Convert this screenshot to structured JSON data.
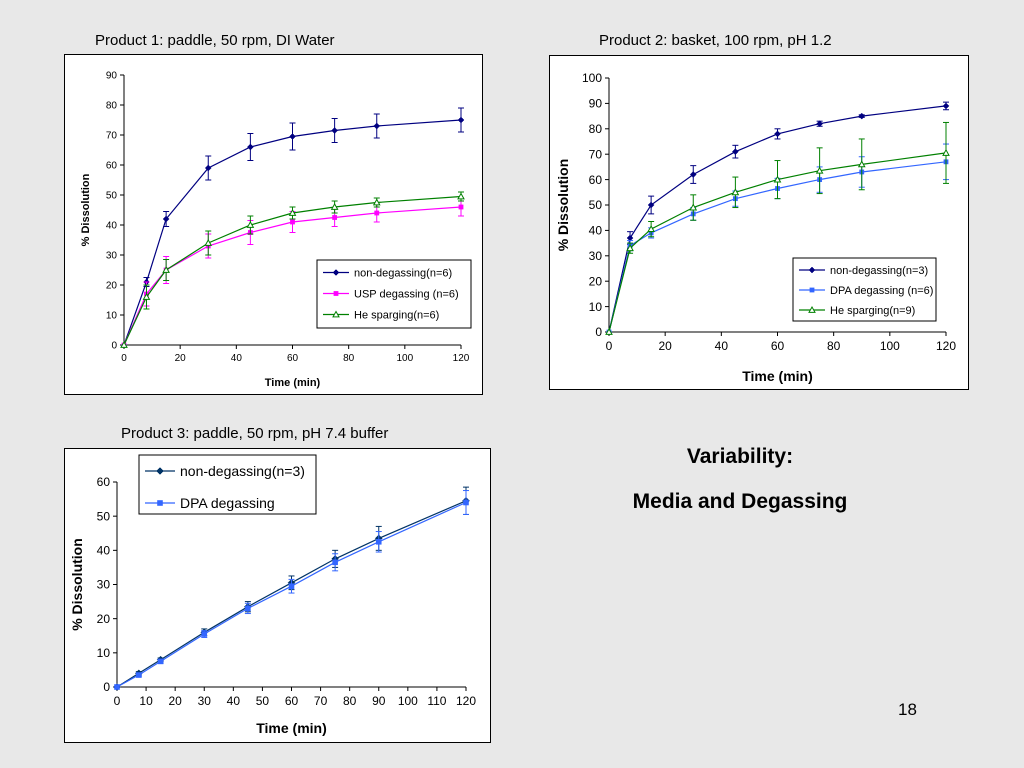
{
  "slide": {
    "heading_line1": "Variability:",
    "heading_line2": "Media and Degassing",
    "page_number": "18"
  },
  "colors": {
    "navy": "#000080",
    "magenta": "#ff00ff",
    "green": "#008000",
    "blue": "#3366ff",
    "darknavy": "#003366"
  },
  "chart_data": [
    {
      "type": "line",
      "title": "Product 1: paddle, 50 rpm, DI Water",
      "xlabel": "Time (min)",
      "ylabel": "% Dissolution",
      "xlim": [
        0,
        120
      ],
      "ylim": [
        0,
        90
      ],
      "xticks": [
        0,
        20,
        40,
        60,
        80,
        100,
        120
      ],
      "yticks": [
        0,
        10,
        20,
        30,
        40,
        50,
        60,
        70,
        80,
        90
      ],
      "legend_position": "bottom-right",
      "series": [
        {
          "name": "non-degassing(n=6)",
          "color": "#000080",
          "marker": "diamond",
          "x": [
            0,
            8,
            15,
            30,
            45,
            60,
            75,
            90,
            120
          ],
          "y": [
            0,
            21,
            42,
            59,
            66,
            69.5,
            71.5,
            73,
            75
          ],
          "err": [
            0,
            1.5,
            2.5,
            4,
            4.5,
            4.5,
            4,
            4,
            4
          ]
        },
        {
          "name": "USP degassing (n=6)",
          "color": "#ff00ff",
          "marker": "square",
          "x": [
            0,
            8,
            15,
            30,
            45,
            60,
            75,
            90,
            120
          ],
          "y": [
            0,
            17,
            25,
            33,
            37.5,
            41,
            42.5,
            44,
            46
          ],
          "err": [
            0,
            4,
            4.5,
            4,
            4,
            3.5,
            3,
            3,
            3
          ]
        },
        {
          "name": "He sparging(n=6)",
          "color": "#008000",
          "marker": "triangle",
          "x": [
            0,
            8,
            15,
            30,
            45,
            60,
            75,
            90,
            120
          ],
          "y": [
            0,
            16,
            25,
            34,
            40,
            44,
            46,
            47.5,
            49.5
          ],
          "err": [
            0,
            4,
            3.5,
            4,
            3,
            2,
            2,
            1.5,
            1.5
          ]
        }
      ]
    },
    {
      "type": "line",
      "title": "Product 2: basket, 100 rpm, pH 1.2",
      "xlabel": "Time (min)",
      "ylabel": "% Dissolution",
      "xlim": [
        0,
        120
      ],
      "ylim": [
        0,
        100
      ],
      "xticks": [
        0,
        20,
        40,
        60,
        80,
        100,
        120
      ],
      "yticks": [
        0,
        10,
        20,
        30,
        40,
        50,
        60,
        70,
        80,
        90,
        100
      ],
      "legend_position": "bottom-right",
      "series": [
        {
          "name": "non-degassing(n=3)",
          "color": "#000080",
          "marker": "diamond",
          "x": [
            0,
            7.5,
            15,
            30,
            45,
            60,
            75,
            90,
            120
          ],
          "y": [
            0,
            37,
            50,
            62,
            71,
            78,
            82,
            85,
            89
          ],
          "err": [
            0,
            2.5,
            3.5,
            3.5,
            2.5,
            2,
            1,
            0.5,
            1.5
          ]
        },
        {
          "name": "DPA degassing (n=6)",
          "color": "#3366ff",
          "marker": "square",
          "x": [
            0,
            7.5,
            15,
            30,
            45,
            60,
            75,
            90,
            120
          ],
          "y": [
            0,
            34,
            39,
            46.5,
            52.5,
            56.5,
            60,
            63,
            67
          ],
          "err": [
            0,
            2,
            2,
            2.5,
            3,
            4,
            5,
            6,
            7
          ]
        },
        {
          "name": "He sparging(n=9)",
          "color": "#008000",
          "marker": "triangle",
          "x": [
            0,
            7.5,
            15,
            30,
            45,
            60,
            75,
            90,
            120
          ],
          "y": [
            0,
            33,
            40.5,
            49,
            55,
            60,
            63.5,
            66,
            70.5
          ],
          "err": [
            0,
            2,
            3,
            5,
            6,
            7.5,
            9,
            10,
            12
          ]
        }
      ]
    },
    {
      "type": "line",
      "title": "Product 3: paddle, 50 rpm, pH 7.4 buffer",
      "xlabel": "Time (min)",
      "ylabel": "% Dissolution",
      "xlim": [
        0,
        120
      ],
      "ylim": [
        0,
        60
      ],
      "xticks": [
        0,
        10,
        20,
        30,
        40,
        50,
        60,
        70,
        80,
        90,
        100,
        110,
        120
      ],
      "yticks": [
        0,
        10,
        20,
        30,
        40,
        50,
        60
      ],
      "legend_position": "top-left",
      "series": [
        {
          "name": "non-degassing(n=3)",
          "color": "#003366",
          "marker": "diamond",
          "x": [
            0,
            7.5,
            15,
            30,
            45,
            60,
            75,
            90,
            120
          ],
          "y": [
            0,
            4,
            8,
            16,
            23.5,
            30.5,
            37.5,
            43.5,
            54.5
          ],
          "err": [
            0,
            0.5,
            0.5,
            1,
            1.5,
            2,
            2.5,
            3.5,
            4
          ]
        },
        {
          "name": "DPA degassing",
          "color": "#3366ff",
          "marker": "square",
          "x": [
            0,
            7.5,
            15,
            30,
            45,
            60,
            75,
            90,
            120
          ],
          "y": [
            0,
            3.5,
            7.5,
            15.5,
            23,
            29.5,
            36.5,
            42.5,
            54
          ],
          "err": [
            0,
            0.5,
            0.5,
            1,
            1.5,
            2,
            2.5,
            3,
            3.5
          ]
        }
      ]
    }
  ]
}
